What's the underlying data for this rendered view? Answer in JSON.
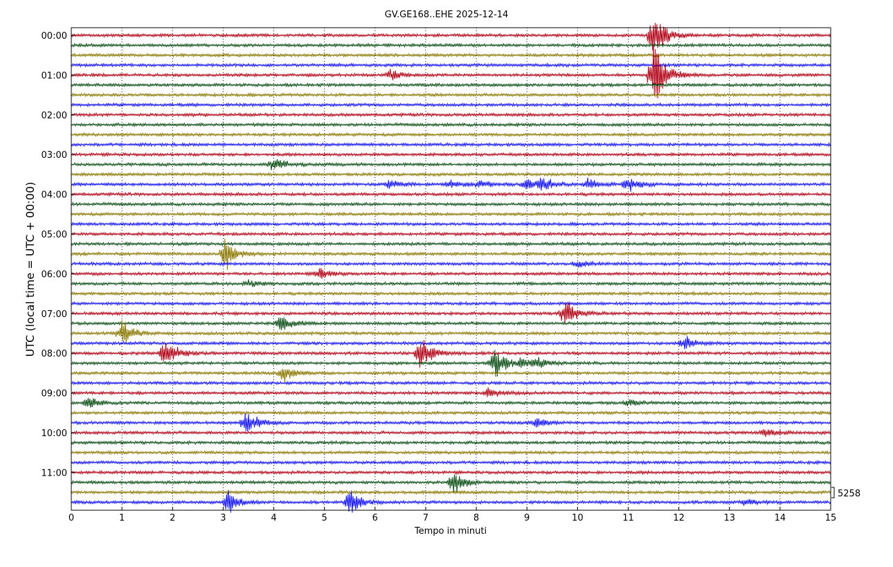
{
  "chart_data": {
    "type": "line",
    "title": "GV.GE168..EHE 2025-12-14",
    "xlabel": "Tempo in minuti",
    "ylabel": "UTC (local time = UTC + 00:00)",
    "xlim": [
      0,
      15
    ],
    "x_ticks": [
      0,
      1,
      2,
      3,
      4,
      5,
      6,
      7,
      8,
      9,
      10,
      11,
      12,
      13,
      14,
      15
    ],
    "y_tick_labels": [
      "00:00",
      "01:00",
      "02:00",
      "03:00",
      "04:00",
      "05:00",
      "06:00",
      "07:00",
      "08:00",
      "09:00",
      "10:00",
      "11:00"
    ],
    "minutes_per_line": 15,
    "line_count": 48,
    "grid": "vertical dotted lines at each minute",
    "series_colors": [
      "#b00014",
      "#0a4d14",
      "#8a7700",
      "#1010f0"
    ],
    "scale_label": "5258",
    "events": [
      {
        "line": 0,
        "minute": 11.5,
        "amp": 3.0
      },
      {
        "line": 4,
        "minute": 11.5,
        "amp": 5.0
      },
      {
        "line": 4,
        "minute": 6.3,
        "amp": 0.7
      },
      {
        "line": 13,
        "minute": 4.0,
        "amp": 0.9
      },
      {
        "line": 15,
        "minute": 6.3,
        "amp": 0.6
      },
      {
        "line": 15,
        "minute": 7.5,
        "amp": 0.5
      },
      {
        "line": 15,
        "minute": 8.1,
        "amp": 0.5
      },
      {
        "line": 15,
        "minute": 9.0,
        "amp": 0.9
      },
      {
        "line": 15,
        "minute": 9.3,
        "amp": 0.8
      },
      {
        "line": 15,
        "minute": 10.2,
        "amp": 0.7
      },
      {
        "line": 15,
        "minute": 11.0,
        "amp": 1.1
      },
      {
        "line": 22,
        "minute": 3.05,
        "amp": 1.8
      },
      {
        "line": 23,
        "minute": 10.0,
        "amp": 0.4
      },
      {
        "line": 24,
        "minute": 4.9,
        "amp": 0.6
      },
      {
        "line": 25,
        "minute": 3.5,
        "amp": 0.4
      },
      {
        "line": 28,
        "minute": 9.75,
        "amp": 1.6
      },
      {
        "line": 29,
        "minute": 4.15,
        "amp": 1.2
      },
      {
        "line": 30,
        "minute": 1.0,
        "amp": 1.8
      },
      {
        "line": 31,
        "minute": 12.1,
        "amp": 0.9
      },
      {
        "line": 32,
        "minute": 1.85,
        "amp": 2.0
      },
      {
        "line": 32,
        "minute": 6.9,
        "amp": 2.4
      },
      {
        "line": 33,
        "minute": 8.35,
        "amp": 2.0
      },
      {
        "line": 33,
        "minute": 8.9,
        "amp": 0.6
      },
      {
        "line": 33,
        "minute": 9.2,
        "amp": 0.5
      },
      {
        "line": 34,
        "minute": 4.2,
        "amp": 1.0
      },
      {
        "line": 36,
        "minute": 8.25,
        "amp": 0.7
      },
      {
        "line": 37,
        "minute": 0.35,
        "amp": 0.8
      },
      {
        "line": 37,
        "minute": 11.0,
        "amp": 0.4
      },
      {
        "line": 39,
        "minute": 3.45,
        "amp": 1.8
      },
      {
        "line": 39,
        "minute": 9.2,
        "amp": 0.5
      },
      {
        "line": 40,
        "minute": 13.7,
        "amp": 0.5
      },
      {
        "line": 45,
        "minute": 7.55,
        "amp": 1.5
      },
      {
        "line": 47,
        "minute": 3.1,
        "amp": 1.5
      },
      {
        "line": 47,
        "minute": 5.5,
        "amp": 1.7
      },
      {
        "line": 47,
        "minute": 13.3,
        "amp": 0.4
      }
    ]
  }
}
